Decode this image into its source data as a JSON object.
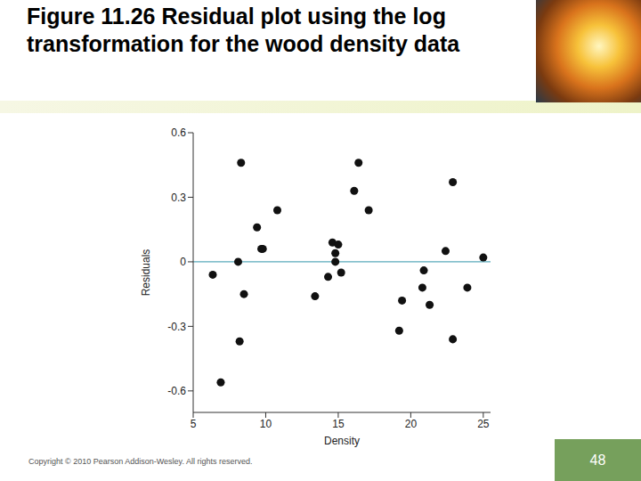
{
  "chart_data": {
    "type": "scatter",
    "title": "Figure 11.26  Residual plot using the log transformation for the wood density data",
    "x_label": "Density",
    "y_label": "Residuals",
    "x": [
      6.35,
      6.9,
      8.3,
      8.1,
      8.5,
      8.2,
      9.4,
      9.7,
      9.8,
      10.8,
      13.4,
      14.3,
      14.6,
      15.0,
      14.8,
      14.8,
      15.2,
      16.1,
      16.4,
      17.1,
      19.2,
      19.4,
      22.4,
      20.9,
      20.8,
      21.3,
      22.9,
      22.9,
      23.9,
      25.0
    ],
    "values": [
      -0.06,
      -0.56,
      0.46,
      0.0,
      -0.15,
      -0.37,
      0.16,
      0.06,
      0.06,
      0.24,
      -0.16,
      -0.07,
      0.09,
      0.08,
      0.04,
      0.0,
      -0.05,
      0.33,
      0.46,
      0.24,
      -0.32,
      -0.18,
      0.05,
      -0.04,
      -0.12,
      -0.2,
      0.37,
      -0.36,
      -0.12,
      0.02
    ],
    "color": "#111111",
    "marker": "circle",
    "xlim": [
      5,
      25.5
    ],
    "xticks": [
      5,
      10,
      15,
      20,
      25
    ],
    "ylim": [
      -0.7,
      0.6
    ],
    "yticks": [
      -0.6,
      -0.3,
      0,
      0.3,
      0.6
    ],
    "grid": false,
    "reference_line": {
      "y": 0,
      "color": "#5aaabb"
    }
  },
  "slide": {
    "footer": "Copyright © 2010 Pearson Addison-Wesley. All rights reserved.",
    "page": 48
  }
}
